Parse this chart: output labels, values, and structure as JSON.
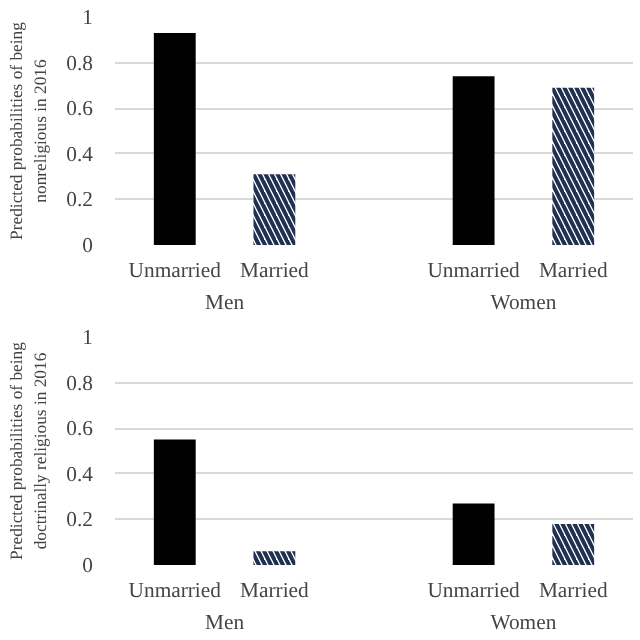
{
  "chart_data": [
    {
      "type": "bar",
      "ylabel": "Predicted probabilities of being\nnonreligious in 2016",
      "categories": [
        "Unmarried",
        "Married",
        null,
        "Unmarried",
        "Married"
      ],
      "series": [
        {
          "color": "#000000",
          "values": [
            0.93,
            null,
            null,
            0.74,
            null
          ]
        },
        {
          "color": "#1f3050",
          "values": [
            null,
            0.31,
            null,
            null,
            0.69
          ]
        }
      ],
      "ylim": [
        0,
        1
      ],
      "yticks": [
        0,
        0.2,
        0.4,
        0.6,
        0.8,
        1
      ],
      "grid": "y",
      "annotations": [
        "Men",
        "Women"
      ]
    },
    {
      "type": "bar",
      "ylabel": "Predicted probabilities of being\ndoctrinally religious in 2016",
      "categories": [
        "Unmarried",
        "Married",
        null,
        "Unmarried",
        "Married"
      ],
      "series": [
        {
          "color": "#000000",
          "values": [
            0.55,
            null,
            null,
            0.27,
            null
          ]
        },
        {
          "color": "#1f3050",
          "values": [
            null,
            0.06,
            null,
            null,
            0.18
          ]
        }
      ],
      "ylim": [
        0,
        1
      ],
      "yticks": [
        0,
        0.2,
        0.4,
        0.6,
        0.8,
        1
      ],
      "grid": "y",
      "annotations": [
        "Men",
        "Women"
      ]
    }
  ]
}
